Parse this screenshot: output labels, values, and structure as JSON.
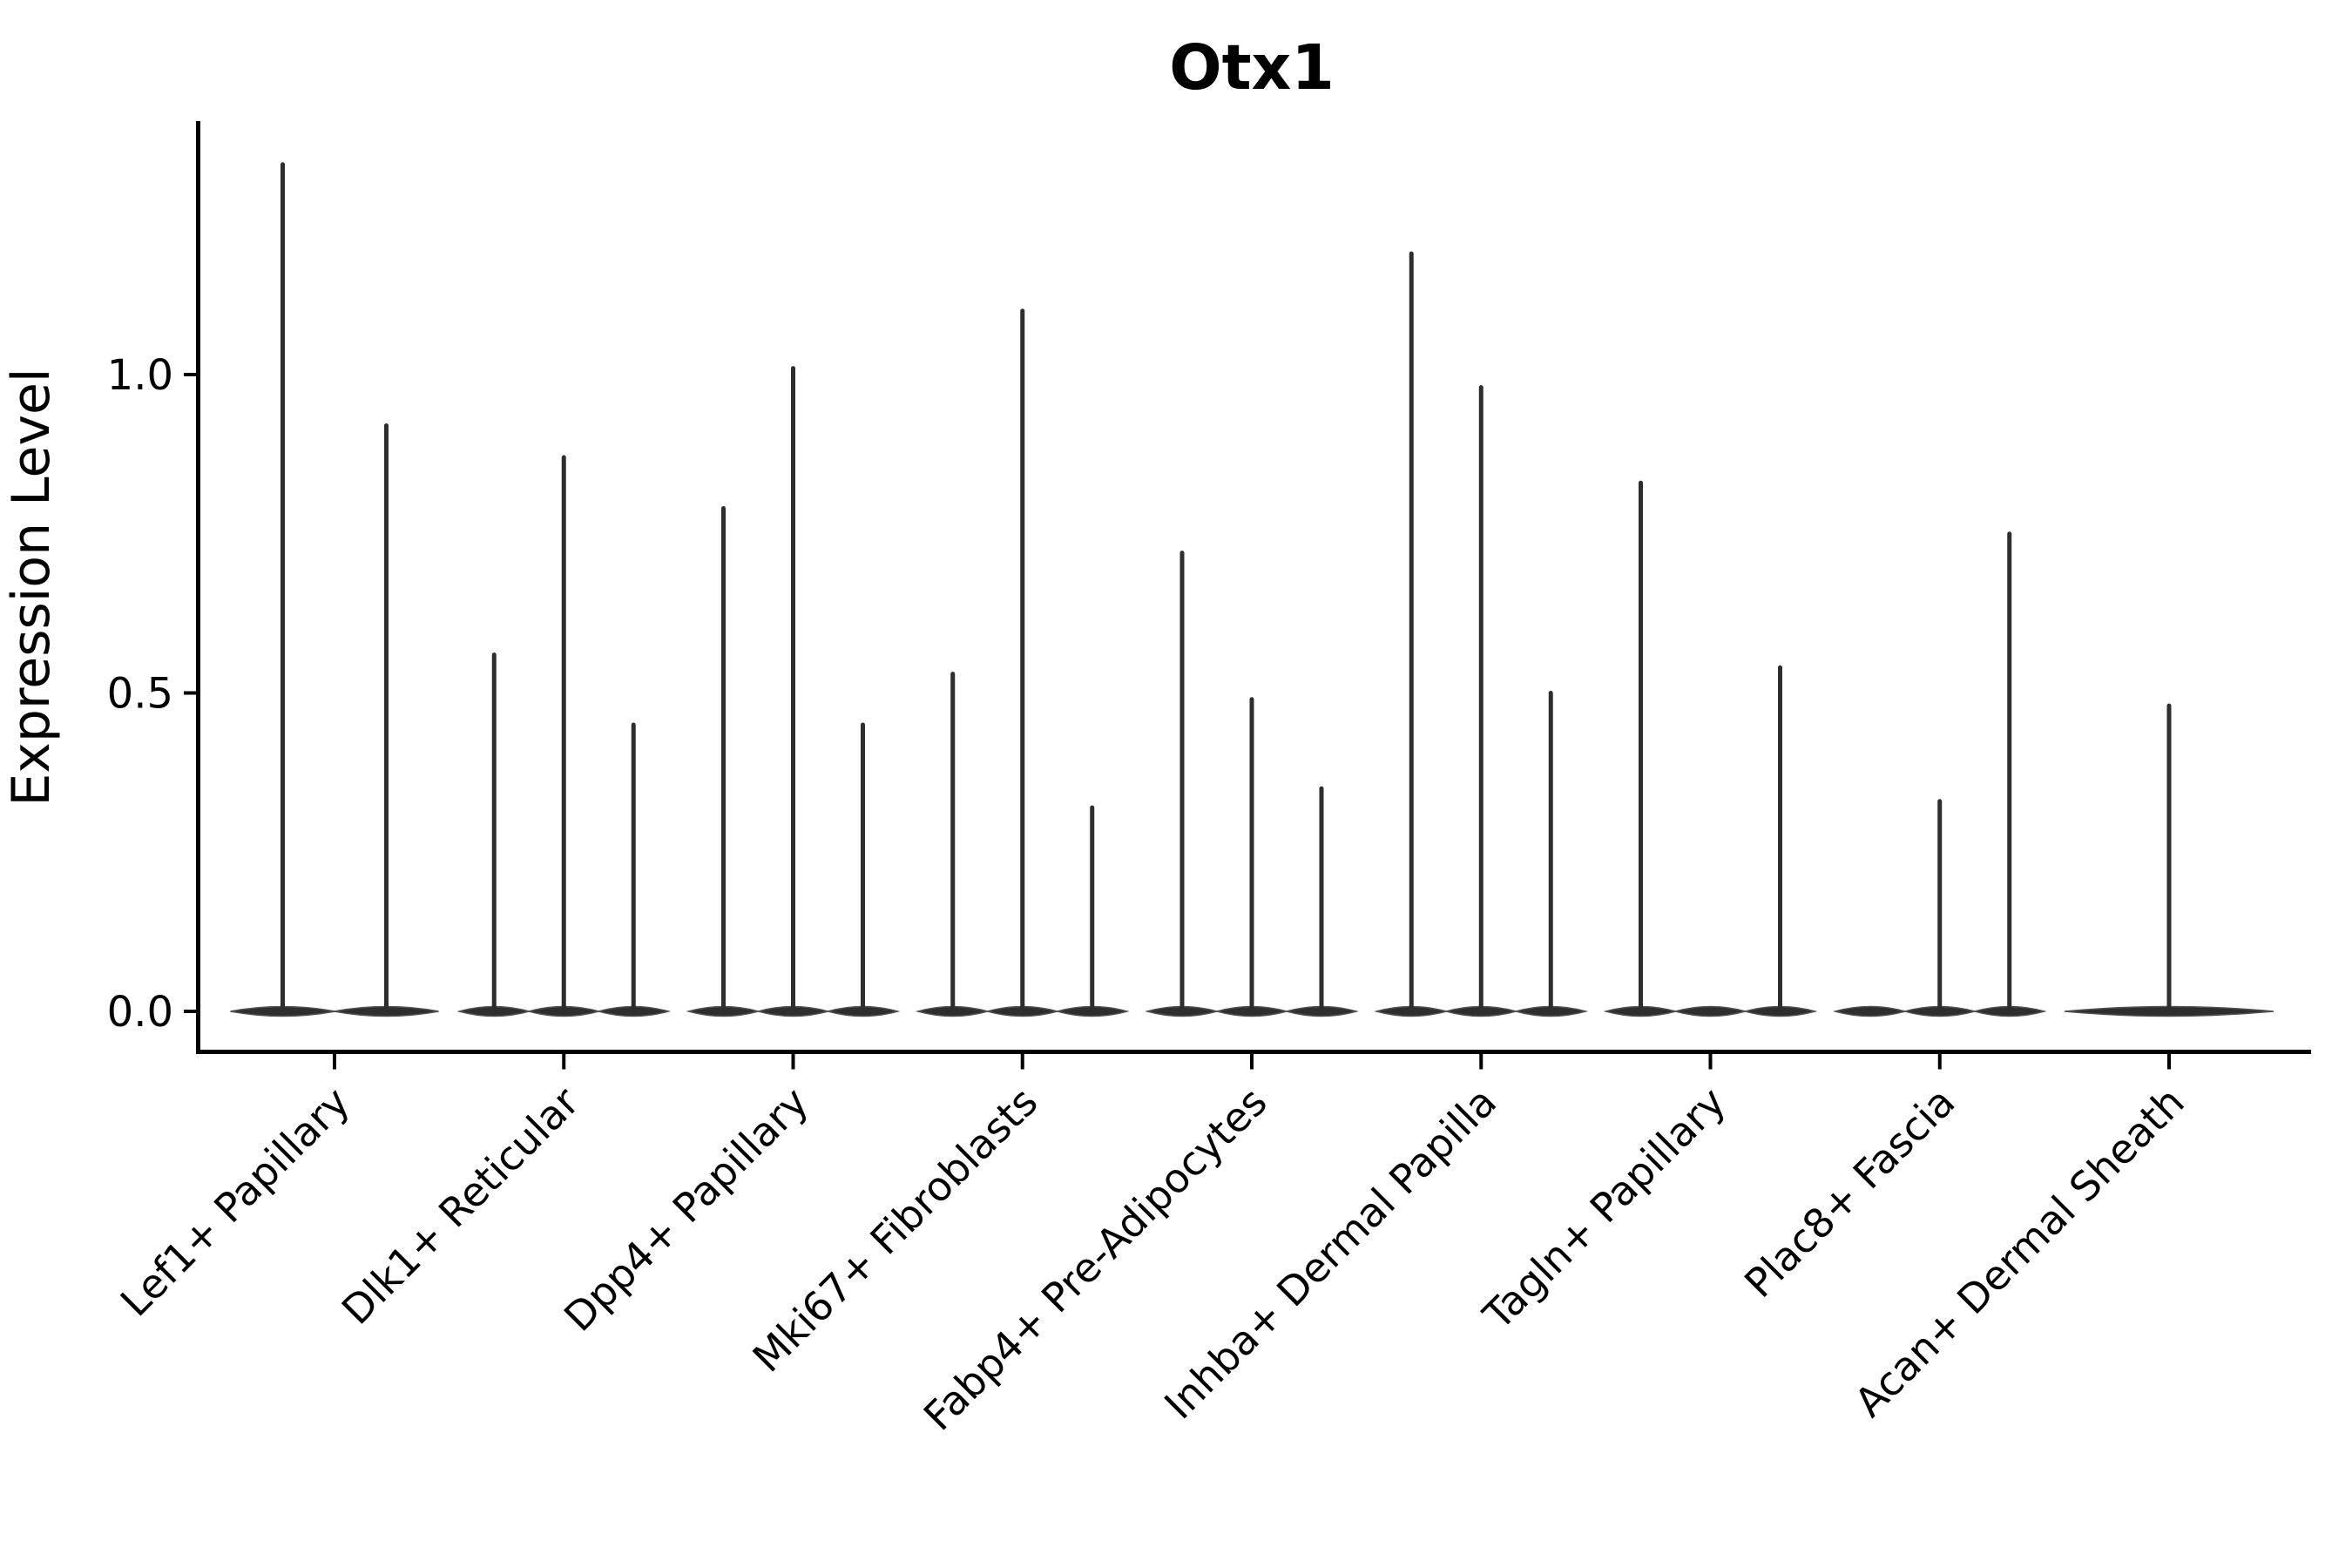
{
  "chart_data": {
    "type": "violin",
    "title": "Otx1",
    "xlabel": "",
    "ylabel": "Expression Level",
    "ytick_labels": [
      "0.0",
      "0.5",
      "1.0"
    ],
    "ytick_values": [
      0.0,
      0.5,
      1.0
    ],
    "ylim": [
      -0.065,
      1.4
    ],
    "grid": false,
    "legend": false,
    "colors": {
      "violin_fill": "#2e2e2e",
      "violin_edge": "#4f4f4f",
      "axis": "#000000",
      "text": "#000000",
      "background": "#ffffff"
    },
    "categories": [
      "Lef1+ Papillary",
      "Dlk1+ Reticular",
      "Dpp4+ Papillary",
      "Mki67+ Fibroblasts",
      "Fabp4+ Pre-Adipocytes",
      "Inhba+ Dermal Papilla",
      "Tagln+ Papillary",
      "Plac8+ Fascia",
      "Acan+ Dermal Sheath"
    ],
    "violin_maxima": [
      [
        1.33,
        0.92
      ],
      [
        0.56,
        0.87,
        0.45
      ],
      [
        0.79,
        1.01,
        0.45
      ],
      [
        0.53,
        1.1,
        0.32
      ],
      [
        0.72,
        0.49,
        0.35
      ],
      [
        1.19,
        0.98,
        0.5
      ],
      [
        0.83,
        0.0,
        0.54
      ],
      [
        0.0,
        0.33,
        0.75
      ],
      [
        0.48
      ]
    ]
  }
}
